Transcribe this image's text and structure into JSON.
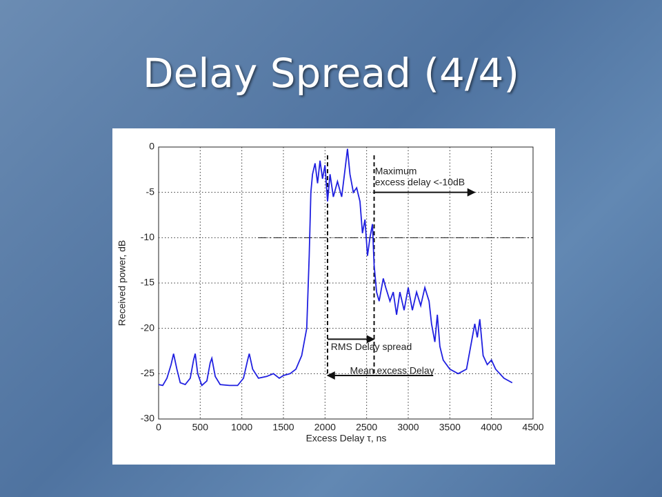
{
  "chart_data": {
    "type": "line",
    "title": "Delay Spread (4/4)",
    "x_label": "Excess Delay τ, ns",
    "y_label": "Received power, dB",
    "xlim": [
      0,
      4500
    ],
    "xticks": [
      0,
      500,
      1000,
      1500,
      2000,
      2500,
      3000,
      3500,
      4000,
      4500
    ],
    "ylim": [
      -30,
      0
    ],
    "yticks": [
      0,
      -5,
      -10,
      -15,
      -20,
      -25,
      -30
    ],
    "grid": true,
    "color": "#1f1fe0",
    "x": [
      0,
      50,
      100,
      150,
      180,
      220,
      260,
      320,
      380,
      420,
      440,
      470,
      520,
      580,
      620,
      640,
      680,
      740,
      850,
      950,
      1020,
      1070,
      1090,
      1130,
      1200,
      1300,
      1380,
      1450,
      1500,
      1580,
      1650,
      1720,
      1780,
      1810,
      1830,
      1850,
      1880,
      1910,
      1940,
      1970,
      2000,
      2030,
      2060,
      2100,
      2150,
      2200,
      2240,
      2270,
      2300,
      2340,
      2380,
      2420,
      2450,
      2480,
      2510,
      2540,
      2570,
      2590,
      2620,
      2650,
      2700,
      2730,
      2780,
      2820,
      2860,
      2900,
      2950,
      3000,
      3050,
      3100,
      3150,
      3200,
      3250,
      3280,
      3320,
      3350,
      3380,
      3420,
      3500,
      3600,
      3700,
      3770,
      3800,
      3830,
      3860,
      3900,
      3950,
      4000,
      4050,
      4150,
      4250
    ],
    "values": [
      -26.2,
      -26.3,
      -25.5,
      -24,
      -22.8,
      -24.5,
      -26,
      -26.2,
      -25.5,
      -23.5,
      -22.8,
      -25,
      -26.3,
      -25.8,
      -23.8,
      -23.3,
      -25.3,
      -26.2,
      -26.3,
      -26.3,
      -25.5,
      -23.5,
      -22.8,
      -24.5,
      -25.5,
      -25.3,
      -25,
      -25.5,
      -25.2,
      -25,
      -24.5,
      -23,
      -20,
      -12,
      -5,
      -3,
      -1.8,
      -4,
      -1.5,
      -3.5,
      -2,
      -6,
      -3,
      -5.5,
      -3.8,
      -5.5,
      -2.5,
      -0.2,
      -3,
      -5,
      -4.5,
      -6,
      -9.5,
      -8,
      -12,
      -10,
      -8.5,
      -13,
      -16,
      -17,
      -14.5,
      -15.5,
      -17,
      -16,
      -18.5,
      -16,
      -18,
      -15.5,
      -18,
      -16,
      -17.5,
      -15.5,
      -17,
      -19.5,
      -21.5,
      -18.5,
      -22,
      -23.5,
      -24.5,
      -25,
      -24.5,
      -21,
      -19.5,
      -21,
      -19,
      -23,
      -24,
      -23.5,
      -24.5,
      -25.5,
      -26
    ],
    "threshold": -10,
    "vlines": [
      2030,
      2590
    ],
    "annotations": [
      {
        "text": [
          "Maximum",
          "excess delay <-10dB"
        ],
        "x": [
          2590,
          3800
        ],
        "y": -5
      },
      {
        "text": [
          "RMS Delay spread"
        ],
        "x": [
          2030,
          2590
        ],
        "y": -21.2
      },
      {
        "text": [
          "Mean excess Delay"
        ],
        "x": [
          3300,
          2030
        ],
        "y": -25.2
      }
    ]
  }
}
